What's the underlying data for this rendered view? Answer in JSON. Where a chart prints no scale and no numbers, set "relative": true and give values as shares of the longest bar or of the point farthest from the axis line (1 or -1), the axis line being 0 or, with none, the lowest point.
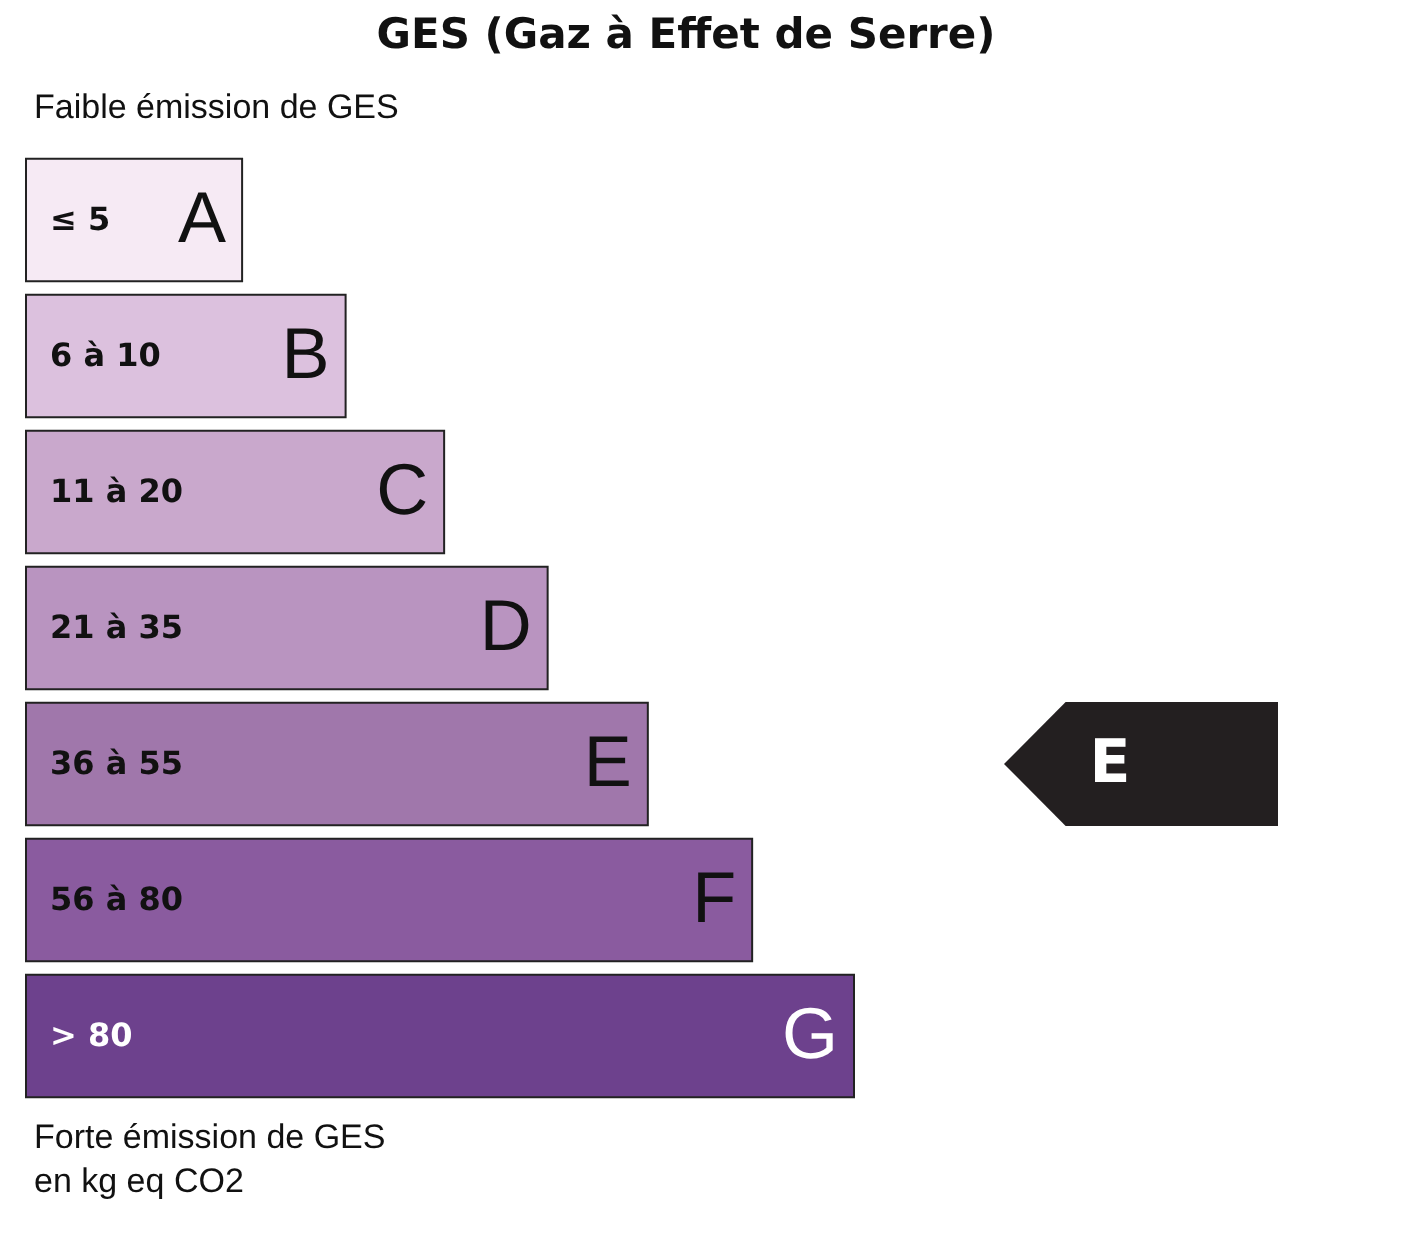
{
  "chart_data": {
    "type": "bar",
    "orientation": "horizontal",
    "relative": true,
    "title": "GES (Gaz à Effet de Serre)",
    "subtitle": "Faible émission de GES",
    "categories": [
      "A",
      "B",
      "C",
      "D",
      "E",
      "F",
      "G"
    ],
    "values": [
      0.261,
      0.386,
      0.505,
      0.63,
      0.751,
      0.877,
      1
    ],
    "colors": [
      "#f6eaf4",
      "#dcc1de",
      "#c9a8cc",
      "#b994c0",
      "#a077ab",
      "#8a5b9f",
      "#6d418d"
    ],
    "needle": "E",
    "annotations": [
      "≤ 5",
      "6 à 10",
      "11 à 20",
      "21 à 35",
      "36 à 55",
      "56 à 80",
      "> 80",
      "Forte émission de GES",
      "en kg eq CO2"
    ],
    "tick_labels": false
  }
}
